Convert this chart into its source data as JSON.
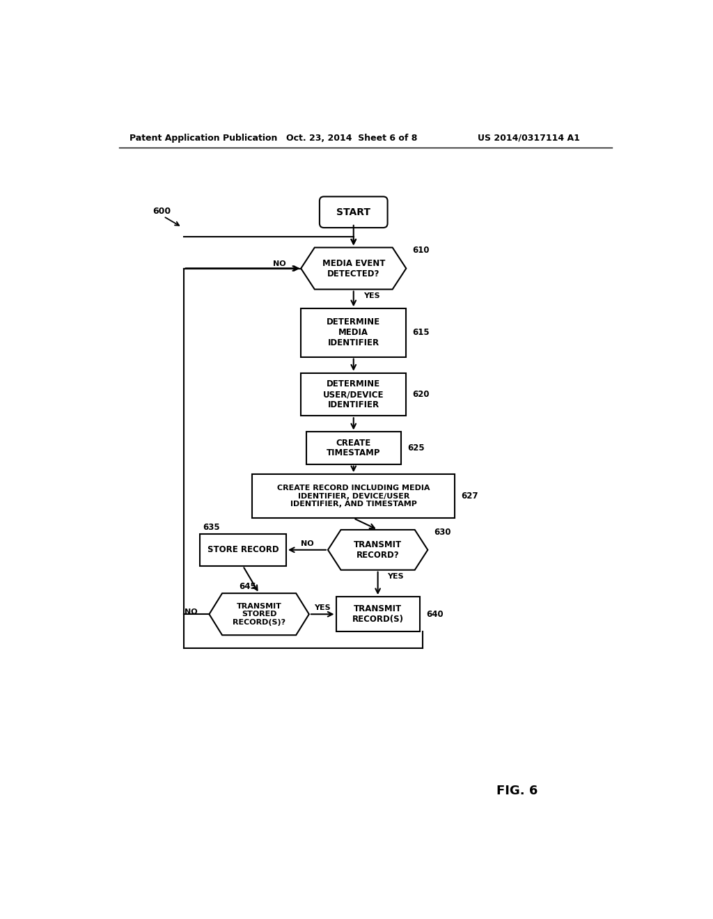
{
  "header_left": "Patent Application Publication",
  "header_mid": "Oct. 23, 2014  Sheet 6 of 8",
  "header_right": "US 2014/0317114 A1",
  "fig_label": "FIG. 6",
  "diagram_label": "600",
  "background_color": "#ffffff"
}
